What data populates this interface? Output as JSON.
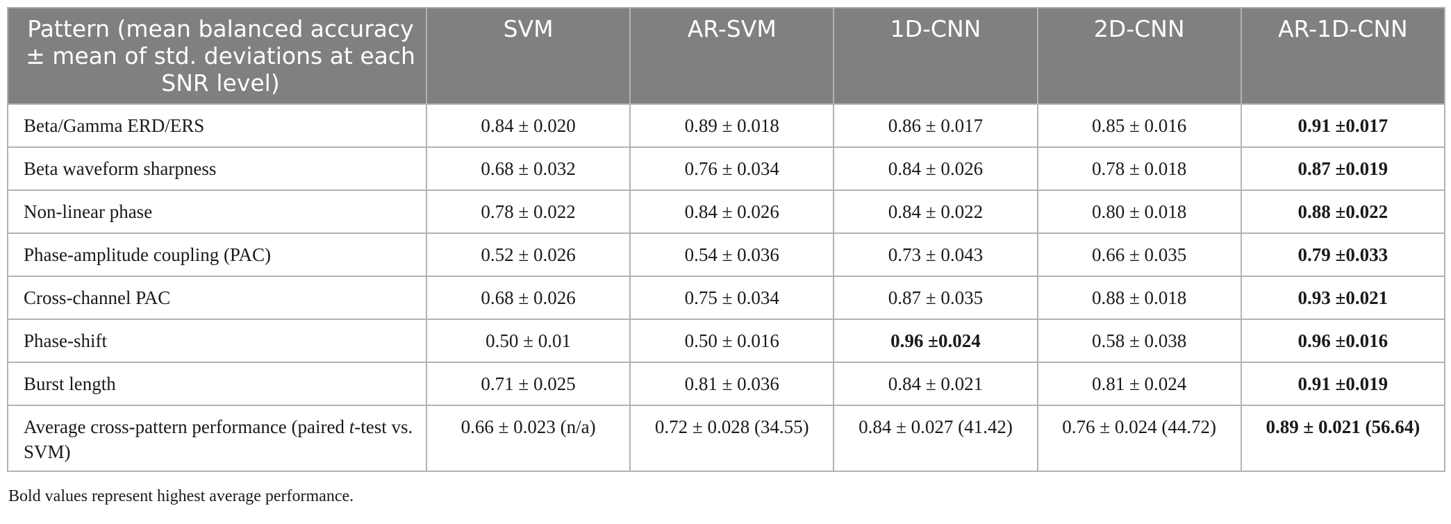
{
  "table": {
    "header": {
      "pattern": "Pattern (mean balanced accuracy ± mean of std. deviations at each SNR level)",
      "columns": [
        "SVM",
        "AR-SVM",
        "1D-CNN",
        "2D-CNN",
        "AR-1D-CNN"
      ]
    },
    "rows": [
      {
        "pattern": "Beta/Gamma ERD/ERS",
        "values": [
          "0.84 ± 0.020",
          "0.89 ± 0.018",
          "0.86 ± 0.017",
          "0.85 ± 0.016",
          "0.91 ±0.017"
        ]
      },
      {
        "pattern": "Beta waveform sharpness",
        "values": [
          "0.68 ± 0.032",
          "0.76 ± 0.034",
          "0.84 ± 0.026",
          "0.78 ± 0.018",
          "0.87 ±0.019"
        ]
      },
      {
        "pattern": "Non-linear phase",
        "values": [
          "0.78 ± 0.022",
          "0.84 ± 0.026",
          "0.84 ± 0.022",
          "0.80 ± 0.018",
          "0.88 ±0.022"
        ]
      },
      {
        "pattern": "Phase-amplitude coupling (PAC)",
        "values": [
          "0.52 ± 0.026",
          "0.54 ± 0.036",
          "0.73 ± 0.043",
          "0.66 ± 0.035",
          "0.79 ±0.033"
        ]
      },
      {
        "pattern": "Cross-channel PAC",
        "values": [
          "0.68 ± 0.026",
          "0.75 ± 0.034",
          "0.87 ± 0.035",
          "0.88 ± 0.018",
          "0.93 ±0.021"
        ]
      },
      {
        "pattern": "Phase-shift",
        "values": [
          "0.50 ± 0.01",
          "0.50 ± 0.016",
          "0.96 ±0.024",
          "0.58 ± 0.038",
          "0.96 ±0.016"
        ]
      },
      {
        "pattern": "Burst length",
        "values": [
          "0.71 ± 0.025",
          "0.81 ± 0.036",
          "0.84 ± 0.021",
          "0.81 ± 0.024",
          "0.91 ±0.019"
        ]
      },
      {
        "pattern_prefix": "Average cross-pattern performance (paired ",
        "pattern_italic": "t",
        "pattern_suffix": "-test vs. SVM)",
        "values": [
          "0.66 ± 0.023 (n/a)",
          "0.72 ± 0.028 (34.55)",
          "0.84 ± 0.027 (41.42)",
          "0.76 ± 0.024 (44.72)",
          "0.89 ± 0.021 (56.64)"
        ]
      }
    ]
  },
  "caption": "Bold values represent highest average performance."
}
